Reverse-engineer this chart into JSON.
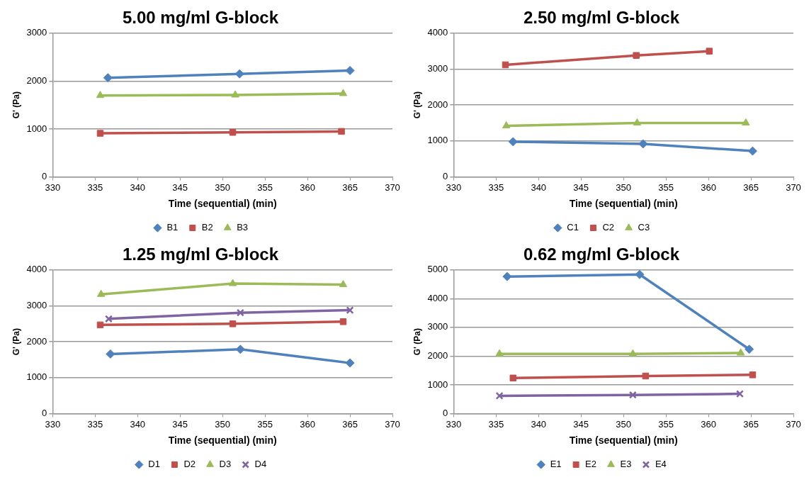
{
  "chart_data": [
    {
      "type": "line",
      "title": "5.00 mg/ml G-block",
      "xlabel": "Time (sequential) (min)",
      "ylabel": "G' (Pa)",
      "xlim": [
        330,
        370
      ],
      "xticks": [
        330,
        335,
        340,
        345,
        350,
        355,
        360,
        365,
        370
      ],
      "ylim": [
        0,
        3000
      ],
      "yticks": [
        0,
        1000,
        2000,
        3000
      ],
      "grid": "y",
      "legend": "bottom",
      "series": [
        {
          "name": "B1",
          "color": "#4f81bd",
          "marker": "diamond",
          "x": [
            336.5,
            352,
            365
          ],
          "values": [
            2070,
            2150,
            2220
          ]
        },
        {
          "name": "B2",
          "color": "#c0504d",
          "marker": "square",
          "x": [
            335.6,
            351.2,
            364
          ],
          "values": [
            910,
            930,
            950
          ]
        },
        {
          "name": "B3",
          "color": "#9bbb59",
          "marker": "triangle",
          "x": [
            335.6,
            351.5,
            364.2
          ],
          "values": [
            1700,
            1710,
            1740
          ]
        }
      ]
    },
    {
      "type": "line",
      "title": "2.50 mg/ml G-block",
      "xlabel": "Time (sequential) (min)",
      "ylabel": "G' (Pa)",
      "xlim": [
        330,
        370
      ],
      "xticks": [
        330,
        335,
        340,
        345,
        350,
        355,
        360,
        365,
        370
      ],
      "ylim": [
        0,
        4000
      ],
      "yticks": [
        0,
        1000,
        2000,
        3000,
        4000
      ],
      "grid": "y",
      "legend": "bottom",
      "series": [
        {
          "name": "C1",
          "color": "#4f81bd",
          "marker": "diamond",
          "x": [
            337,
            352.3,
            365.2
          ],
          "values": [
            980,
            920,
            720
          ]
        },
        {
          "name": "C2",
          "color": "#c0504d",
          "marker": "square",
          "x": [
            336.1,
            351.5,
            360.1
          ],
          "values": [
            3120,
            3380,
            3500
          ]
        },
        {
          "name": "C3",
          "color": "#9bbb59",
          "marker": "triangle",
          "x": [
            336.2,
            351.6,
            364.4
          ],
          "values": [
            1420,
            1500,
            1500
          ]
        }
      ]
    },
    {
      "type": "line",
      "title": "1.25 mg/ml G-block",
      "xlabel": "Time (sequential) (min)",
      "ylabel": "G' (Pa)",
      "xlim": [
        330,
        370
      ],
      "xticks": [
        330,
        335,
        340,
        345,
        350,
        355,
        360,
        365,
        370
      ],
      "ylim": [
        0,
        4000
      ],
      "yticks": [
        0,
        1000,
        2000,
        3000,
        4000
      ],
      "grid": "y",
      "legend": "bottom",
      "series": [
        {
          "name": "D1",
          "color": "#4f81bd",
          "marker": "diamond",
          "x": [
            336.8,
            352.1,
            365
          ],
          "values": [
            1660,
            1790,
            1410
          ]
        },
        {
          "name": "D2",
          "color": "#c0504d",
          "marker": "square",
          "x": [
            335.6,
            351.2,
            364.2
          ],
          "values": [
            2470,
            2500,
            2560
          ]
        },
        {
          "name": "D3",
          "color": "#9bbb59",
          "marker": "triangle",
          "x": [
            335.7,
            351.2,
            364.2
          ],
          "values": [
            3320,
            3620,
            3590
          ]
        },
        {
          "name": "D4",
          "color": "#8064a2",
          "marker": "cross",
          "x": [
            336.6,
            352.1,
            365
          ],
          "values": [
            2640,
            2810,
            2880
          ]
        }
      ]
    },
    {
      "type": "line",
      "title": "0.62 mg/ml G-block",
      "xlabel": "Time (sequential) (min)",
      "ylabel": "G' (Pa)",
      "xlim": [
        330,
        370
      ],
      "xticks": [
        330,
        335,
        340,
        345,
        350,
        355,
        360,
        365,
        370
      ],
      "ylim": [
        0,
        5000
      ],
      "yticks": [
        0,
        1000,
        2000,
        3000,
        4000,
        5000
      ],
      "grid": "y",
      "legend": "bottom",
      "series": [
        {
          "name": "E1",
          "color": "#4f81bd",
          "marker": "diamond",
          "x": [
            336.3,
            351.9,
            364.8
          ],
          "values": [
            4770,
            4840,
            2240
          ]
        },
        {
          "name": "E2",
          "color": "#c0504d",
          "marker": "square",
          "x": [
            337,
            352.6,
            365.2
          ],
          "values": [
            1240,
            1310,
            1350
          ]
        },
        {
          "name": "E3",
          "color": "#9bbb59",
          "marker": "triangle",
          "x": [
            335.4,
            351.1,
            363.8
          ],
          "values": [
            2080,
            2080,
            2110
          ]
        },
        {
          "name": "E4",
          "color": "#8064a2",
          "marker": "cross",
          "x": [
            335.4,
            351.1,
            363.7
          ],
          "values": [
            620,
            650,
            690
          ]
        }
      ]
    }
  ]
}
